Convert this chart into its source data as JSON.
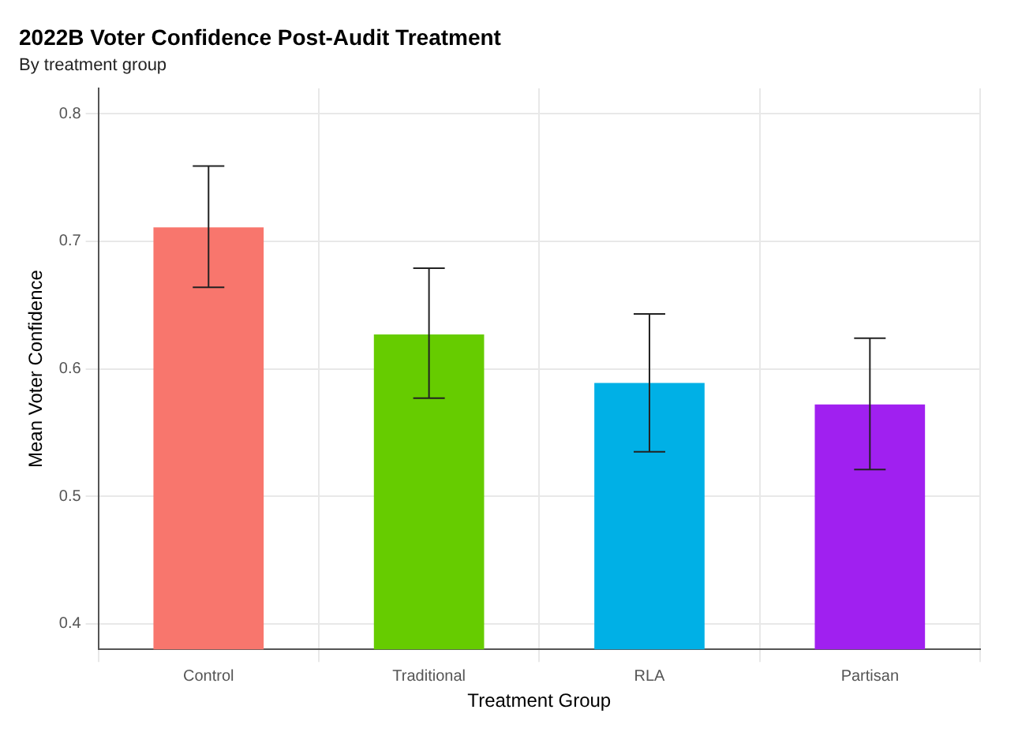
{
  "chart_data": {
    "type": "bar",
    "title": "2022B Voter Confidence Post-Audit Treatment",
    "subtitle": "By treatment group",
    "xlabel": "Treatment Group",
    "ylabel": "Mean Voter Confidence",
    "categories": [
      "Control",
      "Traditional",
      "RLA",
      "Partisan"
    ],
    "values": [
      0.711,
      0.627,
      0.589,
      0.572
    ],
    "colors": [
      "#f8766d",
      "#66cc00",
      "#00b0e6",
      "#a020f0"
    ],
    "errors": [
      [
        0.664,
        0.759
      ],
      [
        0.577,
        0.679
      ],
      [
        0.535,
        0.643
      ],
      [
        0.521,
        0.624
      ]
    ],
    "ylim": [
      0.38,
      0.82
    ],
    "yticks": [
      0.4,
      0.5,
      0.6,
      0.7,
      0.8
    ],
    "grid": true,
    "legend": false
  }
}
